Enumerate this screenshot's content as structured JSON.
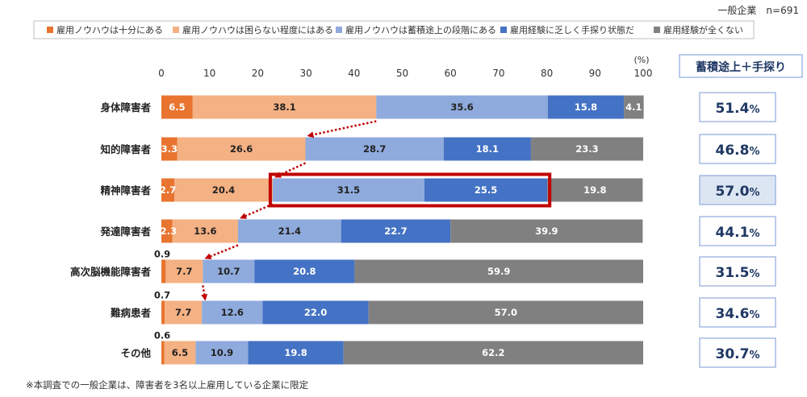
{
  "header": {
    "sample_label": "一般企業　n=691",
    "unit_label": "(%)",
    "summary_header": "蓄積途上＋手探り",
    "footnote": "※本調査での一般企業は、障害者を3名以上雇用している企業に限定"
  },
  "colors": {
    "series": [
      "#e8742f",
      "#f4b183",
      "#8faadc",
      "#4472c4",
      "#808080"
    ],
    "highlight_box": "#c00000",
    "arrow": "#c00000",
    "summary_border": "#8faadc",
    "summary_highlight_bg": "#dce6f2",
    "summary_text": "#1f3864"
  },
  "chart_data": {
    "type": "bar",
    "orientation": "horizontal",
    "stacked": true,
    "xlim": [
      0,
      100
    ],
    "xticks": [
      0,
      10,
      20,
      30,
      40,
      50,
      60,
      70,
      80,
      90,
      100
    ],
    "legend_position": "top",
    "grid": false,
    "categories": [
      "身体障害者",
      "知的障害者",
      "精神障害者",
      "発達障害者",
      "高次脳機能障害者",
      "難病患者",
      "その他"
    ],
    "series": [
      {
        "name": "雇用ノウハウは十分にある",
        "values": [
          6.5,
          3.3,
          2.7,
          2.3,
          0.9,
          0.7,
          0.6
        ]
      },
      {
        "name": "雇用ノウハウは困らない程度にはある",
        "values": [
          38.1,
          26.6,
          20.4,
          13.6,
          7.7,
          7.7,
          6.5
        ]
      },
      {
        "name": "雇用ノウハウは蓄積途上の段階にある",
        "values": [
          35.6,
          28.7,
          31.5,
          21.4,
          10.7,
          12.6,
          10.9
        ]
      },
      {
        "name": "雇用経験に乏しく手探り状態だ",
        "values": [
          15.8,
          18.1,
          25.5,
          22.7,
          20.8,
          22.0,
          19.8
        ]
      },
      {
        "name": "雇用経験が全くない",
        "values": [
          4.1,
          23.3,
          19.8,
          39.9,
          59.9,
          57.0,
          62.2
        ]
      }
    ],
    "summary_values": [
      "51.4",
      "46.8",
      "57.0",
      "44.1",
      "31.5",
      "34.6",
      "30.7"
    ],
    "summary_unit": "%",
    "highlighted_category_index": 2
  }
}
